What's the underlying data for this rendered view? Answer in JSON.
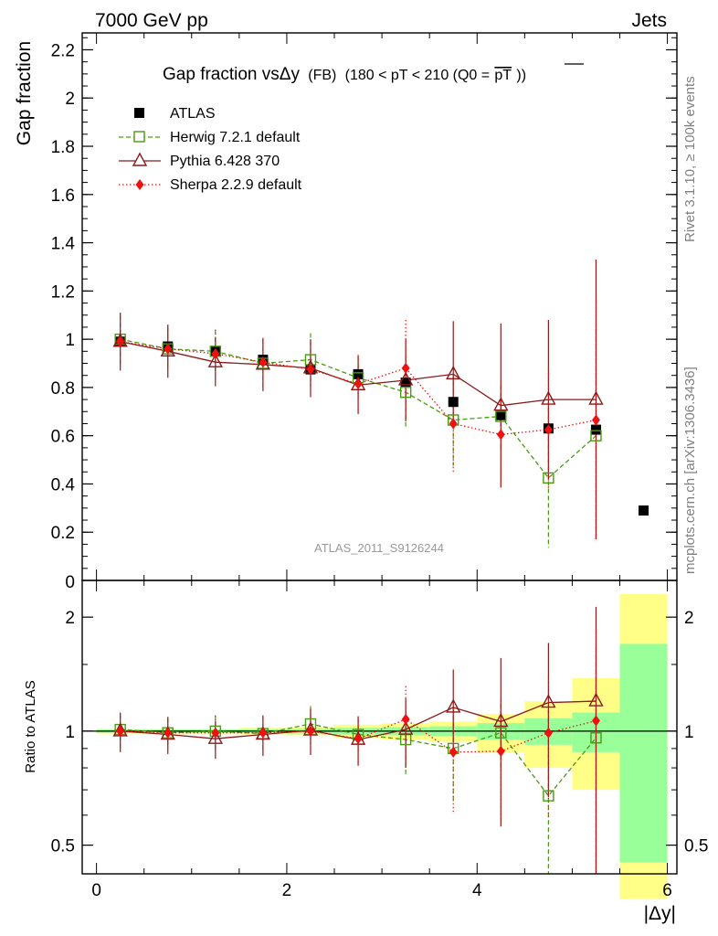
{
  "header": {
    "left": "7000 GeV pp",
    "right": "Jets"
  },
  "side_labels": {
    "rivet": "Rivet 3.1.10, ≥ 100k events",
    "mcplots": "mcplots.cern.ch [arXiv:1306.3436]"
  },
  "chart_data": [
    {
      "type": "scatter",
      "panel": "main",
      "title_main": "Gap fraction vsΔy",
      "title_fb": "(FB)",
      "title_rest": "(180 < pT < 210 (Q0 =",
      "title_pt": "pT",
      "title_end": "))",
      "ylabel": "Gap fraction",
      "watermark": "ATLAS_2011_S9126244",
      "xlim": [
        -0.15,
        6.1
      ],
      "ylim": [
        0,
        2.27
      ],
      "yticks": [
        "0.2",
        "0.4",
        "0.6",
        "0.8",
        "1",
        "1.2",
        "1.4",
        "1.6",
        "1.8",
        "2",
        "2.2"
      ],
      "ytick_partial": "0",
      "x": [
        0.25,
        0.75,
        1.25,
        1.75,
        2.25,
        2.75,
        3.25,
        3.75,
        4.25,
        4.75,
        5.25,
        5.75
      ],
      "series": [
        {
          "name": "ATLAS",
          "color": "#000000",
          "marker": "square",
          "values": [
            0.99,
            0.97,
            0.95,
            0.915,
            0.875,
            0.855,
            0.82,
            0.74,
            0.685,
            0.63,
            0.625,
            0.29
          ]
        },
        {
          "name": "Herwig 7.2.1 default",
          "color": "#4a9a12",
          "marker": "open-square",
          "line": "dashed",
          "values": [
            1.0,
            0.96,
            0.95,
            0.9,
            0.915,
            0.84,
            0.78,
            0.665,
            0.68,
            0.425,
            0.6
          ],
          "err_up": [
            0.1,
            0.09,
            0.09,
            0.1,
            0.11,
            0.09,
            0.15,
            0.19,
            0.13,
            0.29,
            0.44
          ],
          "err_down": [
            0.1,
            0.09,
            0.09,
            0.1,
            0.11,
            0.09,
            0.15,
            0.19,
            0.13,
            0.29,
            0.44
          ]
        },
        {
          "name": "Pythia 6.428 370",
          "color": "#8b1a1a",
          "marker": "open-triangle",
          "line": "solid",
          "values": [
            0.99,
            0.95,
            0.905,
            0.895,
            0.88,
            0.81,
            0.83,
            0.855,
            0.725,
            0.75,
            0.75
          ],
          "err_up": [
            0.12,
            0.11,
            0.1,
            0.11,
            0.12,
            0.12,
            0.17,
            0.22,
            0.34,
            0.33,
            0.58
          ],
          "err_down": [
            0.12,
            0.11,
            0.1,
            0.11,
            0.12,
            0.12,
            0.17,
            0.22,
            0.34,
            0.33,
            0.58
          ]
        },
        {
          "name": "Sherpa 2.2.9 default",
          "color": "#ee1111",
          "marker": "diamond",
          "line": "dotted",
          "values": [
            0.99,
            0.96,
            0.94,
            0.905,
            0.875,
            0.815,
            0.88,
            0.65,
            0.605,
            0.625,
            0.665
          ],
          "err_up": [
            0.11,
            0.1,
            0.1,
            0.1,
            0.12,
            0.12,
            0.2,
            0.2,
            0.22,
            0.25,
            0.5
          ],
          "err_down": [
            0.11,
            0.1,
            0.1,
            0.1,
            0.12,
            0.12,
            0.2,
            0.2,
            0.22,
            0.25,
            0.5
          ]
        }
      ]
    },
    {
      "type": "scatter",
      "panel": "ratio",
      "ylabel": "Ratio to ATLAS",
      "xlabel": "|Δy|",
      "xticks": [
        "0",
        "2",
        "4",
        "6"
      ],
      "yticks": [
        "0.5",
        "1",
        "2"
      ],
      "yscale": "log",
      "ylim": [
        0.42,
        2.5
      ],
      "x": [
        0.25,
        0.75,
        1.25,
        1.75,
        2.25,
        2.75,
        3.25,
        3.75,
        4.25,
        4.75,
        5.25
      ],
      "bands": {
        "edges": [
          0,
          0.5,
          1,
          1.5,
          2,
          2.5,
          3,
          3.5,
          4,
          4.5,
          5,
          5.5,
          6
        ],
        "stat_up": [
          1.01,
          1.01,
          1.01,
          1.012,
          1.015,
          1.02,
          1.025,
          1.03,
          1.05,
          1.08,
          1.12,
          1.7
        ],
        "stat_down": [
          0.99,
          0.99,
          0.99,
          0.988,
          0.985,
          0.98,
          0.975,
          0.97,
          0.95,
          0.92,
          0.88,
          0.45
        ],
        "total_up": [
          1.015,
          1.015,
          1.015,
          1.02,
          1.025,
          1.04,
          1.05,
          1.06,
          1.11,
          1.2,
          1.38,
          2.3
        ],
        "total_down": [
          0.985,
          0.985,
          0.985,
          0.98,
          0.975,
          0.96,
          0.95,
          0.94,
          0.88,
          0.8,
          0.7,
          0.36
        ],
        "stat_color": "#99ff99",
        "total_color": "#ffff88"
      },
      "series": [
        {
          "name": "Herwig 7.2.1 default",
          "color": "#4a9a12",
          "values": [
            1.01,
            0.99,
            1.0,
            0.985,
            1.045,
            0.98,
            0.95,
            0.9,
            0.99,
            0.675,
            0.96
          ],
          "err_up": [
            0.1,
            0.09,
            0.1,
            0.11,
            0.12,
            0.1,
            0.18,
            0.25,
            0.19,
            0.46,
            0.7
          ],
          "err_down": [
            0.1,
            0.09,
            0.1,
            0.11,
            0.12,
            0.1,
            0.18,
            0.25,
            0.19,
            0.46,
            0.7
          ]
        },
        {
          "name": "Pythia 6.428 370",
          "color": "#8b1a1a",
          "values": [
            1.0,
            0.98,
            0.955,
            0.98,
            1.005,
            0.95,
            1.01,
            1.155,
            1.06,
            1.19,
            1.2
          ],
          "err_up": [
            0.12,
            0.11,
            0.11,
            0.12,
            0.14,
            0.14,
            0.21,
            0.3,
            0.5,
            0.52,
            0.93
          ],
          "err_down": [
            0.12,
            0.11,
            0.11,
            0.12,
            0.14,
            0.14,
            0.21,
            0.3,
            0.5,
            0.52,
            0.93
          ]
        },
        {
          "name": "Sherpa 2.2.9 default",
          "color": "#ee1111",
          "values": [
            1.0,
            0.99,
            0.99,
            0.99,
            1.0,
            0.955,
            1.075,
            0.88,
            0.885,
            0.99,
            1.065
          ],
          "err_up": [
            0.11,
            0.1,
            0.11,
            0.11,
            0.14,
            0.14,
            0.24,
            0.27,
            0.32,
            0.4,
            0.8
          ],
          "err_down": [
            0.11,
            0.1,
            0.11,
            0.11,
            0.14,
            0.14,
            0.24,
            0.27,
            0.32,
            0.4,
            0.8
          ]
        }
      ]
    }
  ]
}
